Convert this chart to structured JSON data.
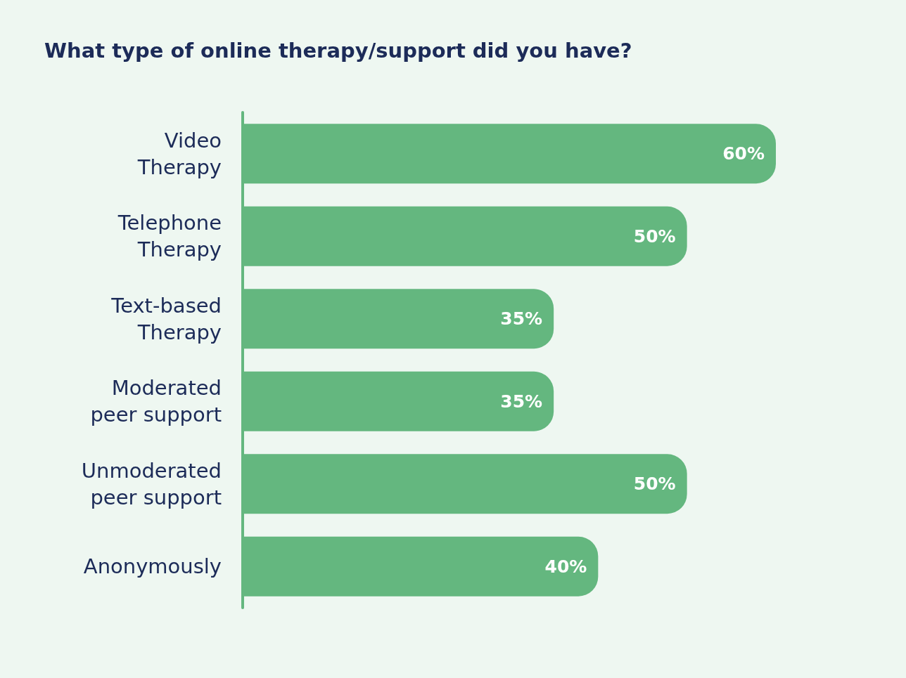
{
  "chart_data": {
    "type": "bar",
    "title": "What type of online therapy/support did you have?",
    "orientation": "horizontal",
    "categories": [
      "Video Therapy",
      "Telephone Therapy",
      "Text-based Therapy",
      "Moderated peer support",
      "Unmoderated peer support",
      "Anonymously"
    ],
    "values": [
      60,
      50,
      35,
      35,
      50,
      40
    ],
    "value_labels": [
      "60%",
      "50%",
      "35%",
      "35%",
      "50%",
      "40%"
    ],
    "color": "#64b77f"
  }
}
